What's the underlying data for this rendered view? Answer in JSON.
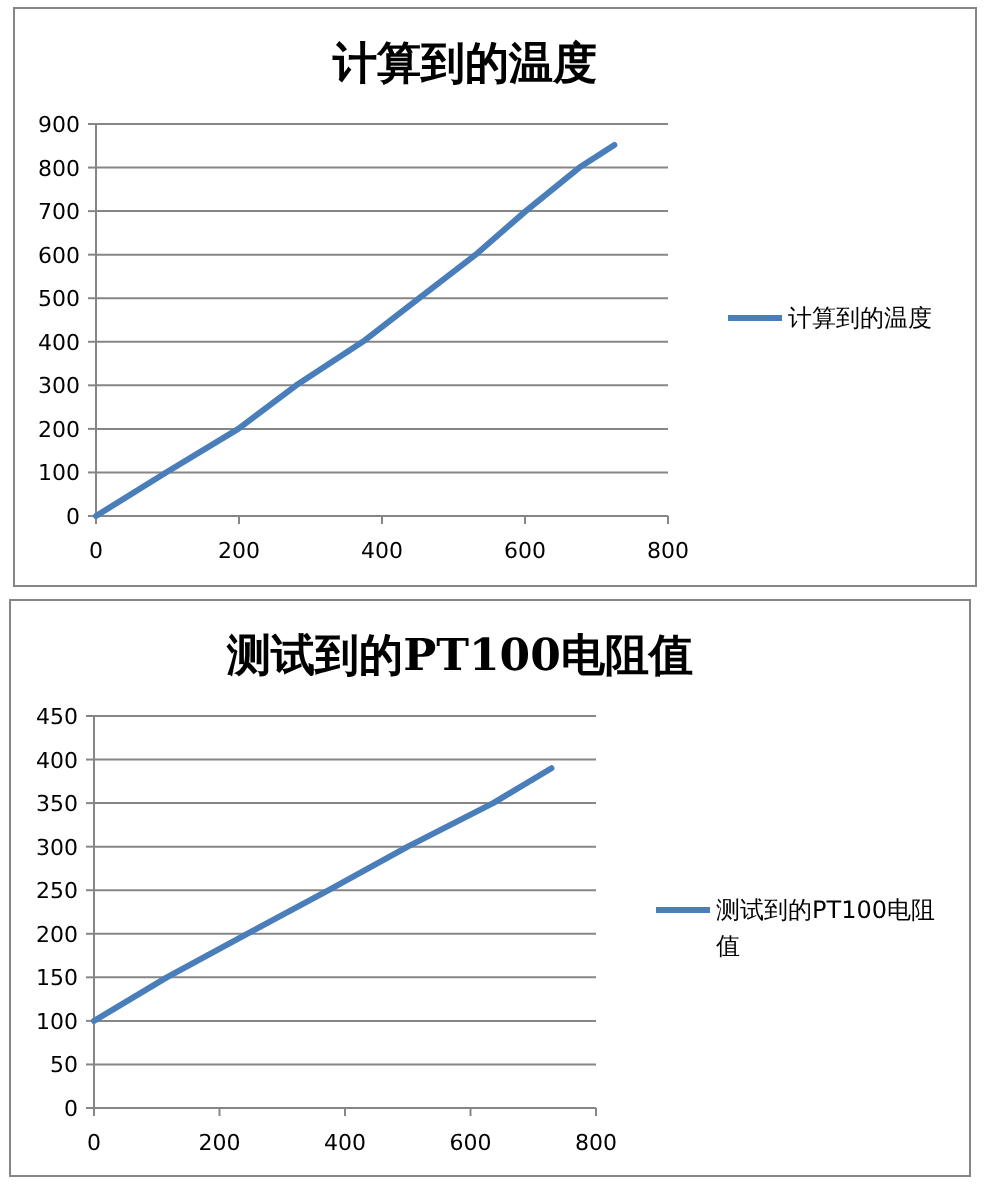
{
  "chart_data": [
    {
      "type": "line",
      "title": "计算到的温度",
      "x": [
        0,
        98,
        199,
        280,
        373,
        452,
        531,
        601,
        676,
        725
      ],
      "series": [
        {
          "name": "计算到的温度",
          "color": "#4a7ebb",
          "values": [
            0,
            100,
            200,
            300,
            400,
            500,
            600,
            700,
            800,
            852
          ]
        }
      ],
      "xlim": [
        0,
        800
      ],
      "xticks": [
        0,
        200,
        400,
        600,
        800
      ],
      "ylim": [
        0,
        900
      ],
      "yticks": [
        0,
        100,
        200,
        300,
        400,
        500,
        600,
        700,
        800,
        900
      ],
      "grid": "y",
      "legend": "right",
      "marker": "none",
      "line_style": "solid"
    },
    {
      "type": "line",
      "title": "测试到的PT100电阻值",
      "x": [
        0,
        116,
        244,
        374,
        500,
        636,
        729
      ],
      "series": [
        {
          "name": "测试到的PT100电阻值",
          "color": "#4a7ebb",
          "values": [
            100,
            150,
            200,
            250,
            300,
            350,
            390
          ]
        }
      ],
      "xlim": [
        0,
        800
      ],
      "xticks": [
        0,
        200,
        400,
        600,
        800
      ],
      "ylim": [
        0,
        450
      ],
      "yticks": [
        0,
        50,
        100,
        150,
        200,
        250,
        300,
        350,
        400,
        450
      ],
      "grid": "y",
      "legend": "right",
      "marker": "none",
      "line_style": "solid"
    }
  ]
}
